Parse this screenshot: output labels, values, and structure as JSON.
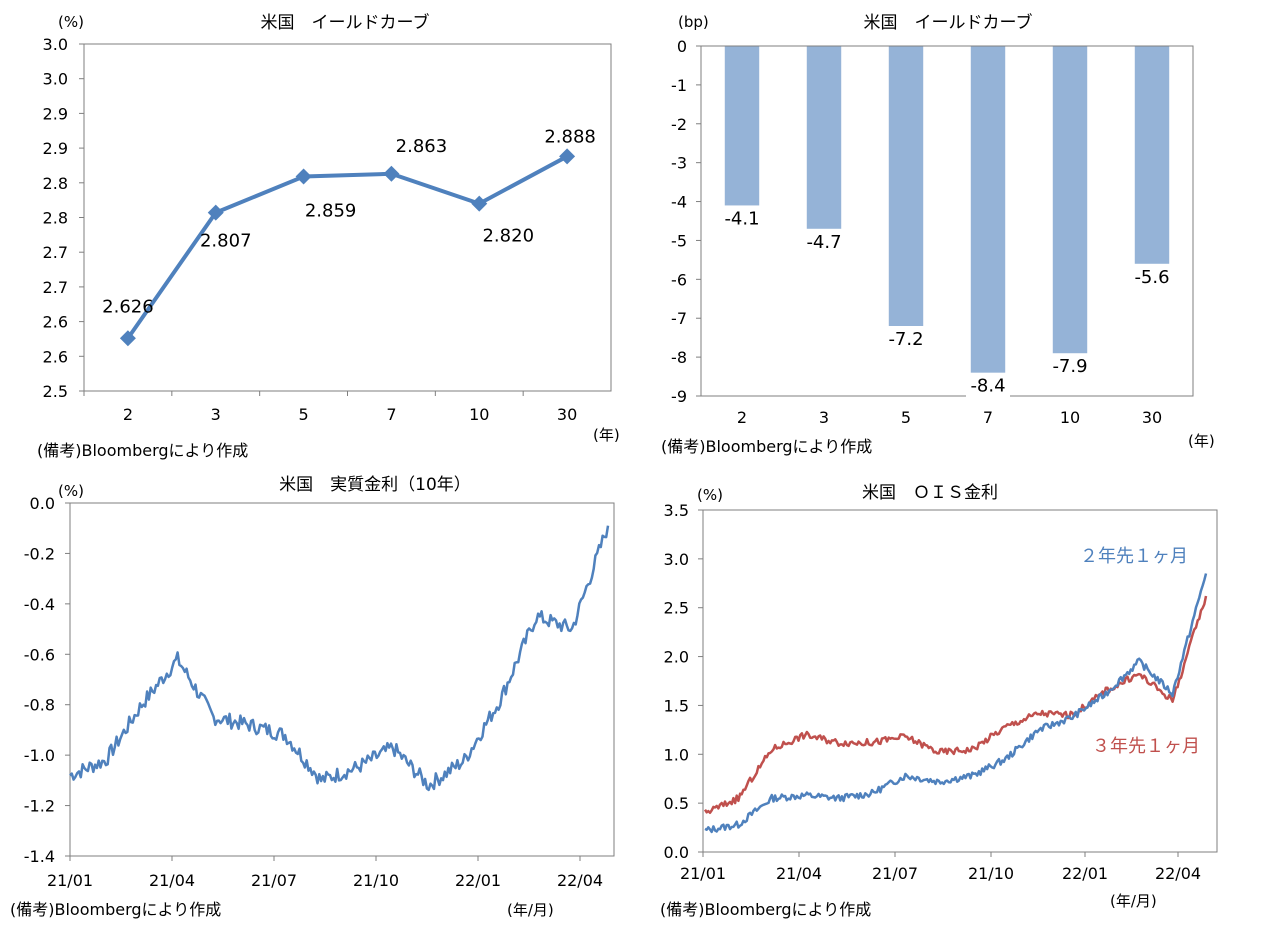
{
  "source_note": "(備考)Bloombergにより作成",
  "colors": {
    "blue": "#4f81bd",
    "red": "#c0504d",
    "bar": "#95b3d7",
    "frame": "#7f7f7f"
  },
  "chart_data": [
    {
      "type": "line",
      "title": "米国　イールドカーブ",
      "unit_label": "(%)",
      "xlabel": "(年)",
      "categories": [
        "2",
        "3",
        "5",
        "7",
        "10",
        "30"
      ],
      "series": [
        {
          "values": [
            2.626,
            2.807,
            2.859,
            2.863,
            2.82,
            2.888
          ]
        }
      ],
      "data_labels": [
        "2.626",
        "2.807",
        "2.859",
        "2.863",
        "2.820",
        "2.888"
      ],
      "yticks": [
        "3.0",
        "3.0",
        "2.9",
        "2.9",
        "2.8",
        "2.8",
        "2.7",
        "2.7",
        "2.6",
        "2.6",
        "2.5"
      ],
      "ylim": [
        2.55,
        3.05
      ],
      "marker": "diamond",
      "grid": false,
      "source": "(備考)Bloombergにより作成"
    },
    {
      "type": "bar",
      "title": "米国　イールドカーブ",
      "unit_label": "(bp)",
      "xlabel": "(年)",
      "categories": [
        "2",
        "3",
        "5",
        "7",
        "10",
        "30"
      ],
      "values": [
        -4.1,
        -4.7,
        -7.2,
        -8.4,
        -7.9,
        -5.6
      ],
      "data_labels": [
        "-4.1",
        "-4.7",
        "-7.2",
        "-8.4",
        "-7.9",
        "-5.6"
      ],
      "yticks": [
        "0",
        "-1",
        "-2",
        "-3",
        "-4",
        "-5",
        "-6",
        "-7",
        "-8",
        "-9"
      ],
      "ylim": [
        -9,
        0
      ],
      "grid": false,
      "source": "(備考)Bloombergにより作成"
    },
    {
      "type": "line",
      "title": "米国　実質金利（10年）",
      "unit_label": "(%)",
      "xlabel": "(年/月)",
      "x_ticks": [
        "21/01",
        "21/04",
        "21/07",
        "21/10",
        "22/01",
        "22/04"
      ],
      "yticks": [
        "0.0",
        "-0.2",
        "-0.4",
        "-0.6",
        "-0.8",
        "-1.0",
        "-1.2",
        "-1.4"
      ],
      "ylim": [
        -1.4,
        0.0
      ],
      "series": [
        {
          "x": [
            "21/01",
            "21/02",
            "21/03",
            "21/04",
            "21/05",
            "21/06",
            "21/07",
            "21/08",
            "21/09",
            "21/10",
            "21/11",
            "21/12",
            "22/01",
            "22/02",
            "22/03",
            "22/04"
          ],
          "values": [
            -1.08,
            -1.02,
            -0.8,
            -0.62,
            -0.85,
            -0.88,
            -0.92,
            -1.1,
            -1.05,
            -0.97,
            -1.12,
            -1.02,
            -0.78,
            -0.45,
            -0.5,
            -0.09
          ]
        }
      ],
      "grid": false,
      "source": "(備考)Bloombergにより作成"
    },
    {
      "type": "line",
      "title": "米国　ＯＩＳ金利",
      "unit_label": "(%)",
      "xlabel": "(年/月)",
      "x_ticks": [
        "21/01",
        "21/04",
        "21/07",
        "21/10",
        "22/01",
        "22/04"
      ],
      "yticks": [
        "3.5",
        "3.0",
        "2.5",
        "2.0",
        "1.5",
        "1.0",
        "0.5",
        "0.0"
      ],
      "ylim": [
        0.0,
        3.5
      ],
      "series": [
        {
          "name": "２年先１ヶ月",
          "x": [
            "21/01",
            "21/02",
            "21/03",
            "21/04",
            "21/05",
            "21/06",
            "21/07",
            "21/08",
            "21/09",
            "21/10",
            "21/11",
            "21/12",
            "22/01",
            "22/02",
            "22/03",
            "22/04"
          ],
          "values": [
            0.22,
            0.28,
            0.55,
            0.58,
            0.55,
            0.6,
            0.78,
            0.72,
            0.78,
            0.95,
            1.25,
            1.38,
            1.62,
            1.95,
            1.62,
            2.85
          ]
        },
        {
          "name": "３年先１ヶ月",
          "x": [
            "21/01",
            "21/02",
            "21/03",
            "21/04",
            "21/05",
            "21/06",
            "21/07",
            "21/08",
            "21/09",
            "21/10",
            "21/11",
            "21/12",
            "22/01",
            "22/02",
            "22/03",
            "22/04"
          ],
          "values": [
            0.4,
            0.55,
            1.05,
            1.2,
            1.12,
            1.12,
            1.18,
            1.02,
            1.05,
            1.28,
            1.42,
            1.4,
            1.65,
            1.82,
            1.55,
            2.62
          ]
        }
      ],
      "grid": false,
      "source": "(備考)Bloombergにより作成"
    }
  ]
}
